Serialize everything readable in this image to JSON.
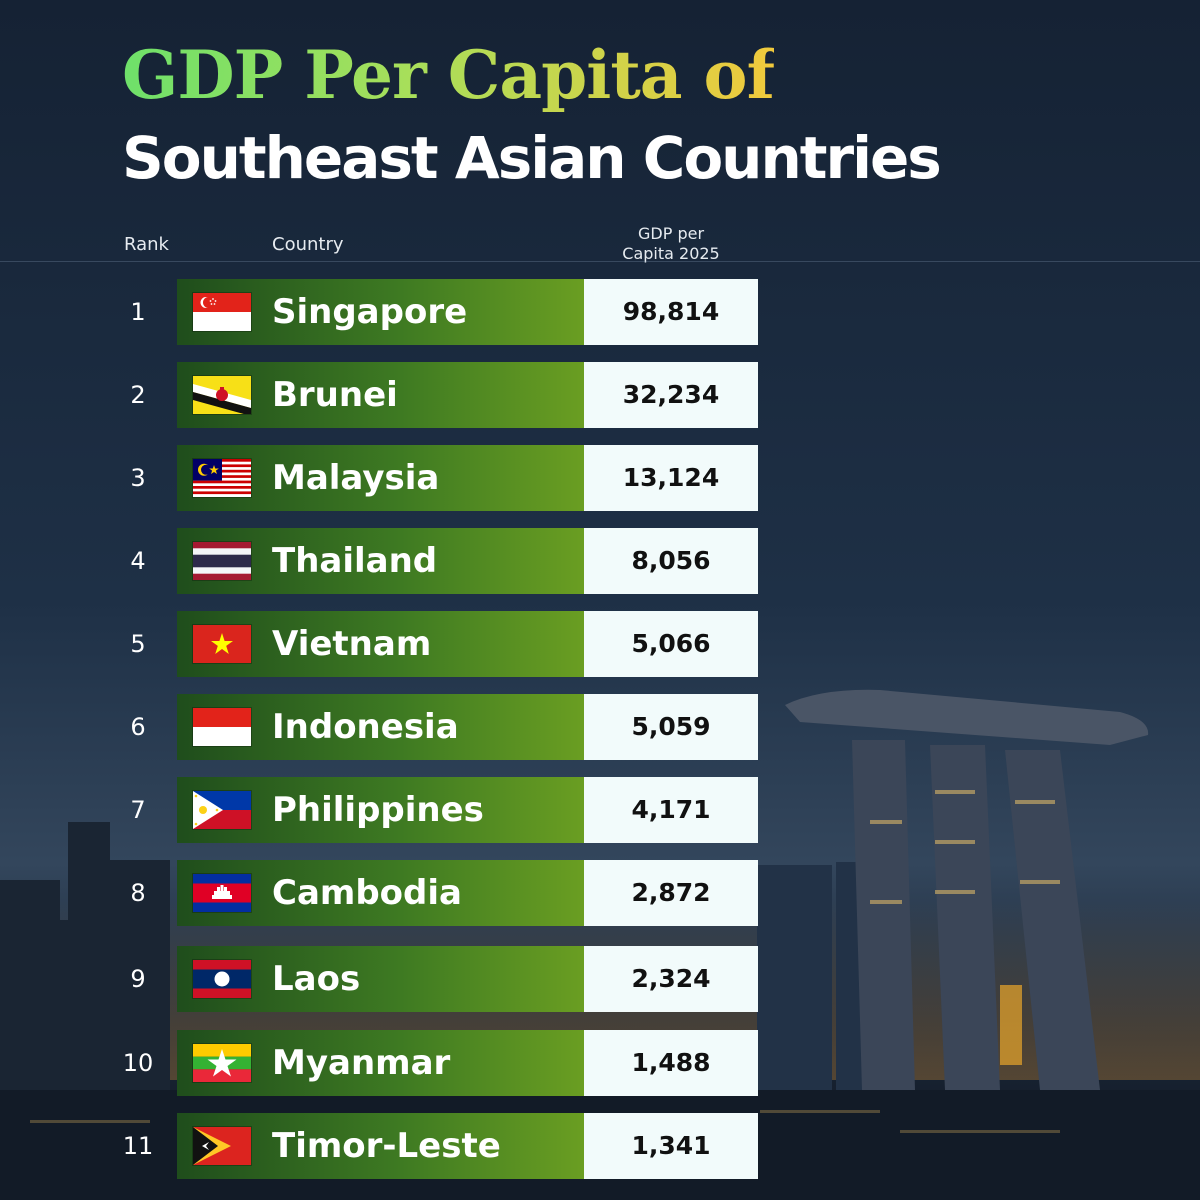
{
  "title_line1": "GDP Per Capita of",
  "title_line2": "Southeast Asian Countries",
  "headers": {
    "rank": "Rank",
    "country": "Country",
    "gdp_line1": "GDP per",
    "gdp_line2": "Capita 2025"
  },
  "colors": {
    "bar_start": "#1f4d1c",
    "bar_end": "#6a9e22",
    "value_bg": "#f2fbfb",
    "title_green": "#6ee06a",
    "title_gold": "#f0c93c"
  },
  "chart_data": {
    "type": "table",
    "title": "GDP Per Capita of Southeast Asian Countries",
    "columns": [
      "Rank",
      "Country",
      "GDP per Capita 2025"
    ],
    "rows": [
      {
        "rank": "1",
        "country": "Singapore",
        "value": "98,814",
        "flag": "singapore-flag-icon"
      },
      {
        "rank": "2",
        "country": "Brunei",
        "value": "32,234",
        "flag": "brunei-flag-icon"
      },
      {
        "rank": "3",
        "country": "Malaysia",
        "value": "13,124",
        "flag": "malaysia-flag-icon"
      },
      {
        "rank": "4",
        "country": "Thailand",
        "value": "8,056",
        "flag": "thailand-flag-icon"
      },
      {
        "rank": "5",
        "country": "Vietnam",
        "value": "5,066",
        "flag": "vietnam-flag-icon"
      },
      {
        "rank": "6",
        "country": "Indonesia",
        "value": "5,059",
        "flag": "indonesia-flag-icon"
      },
      {
        "rank": "7",
        "country": "Philippines",
        "value": "4,171",
        "flag": "philippines-flag-icon"
      },
      {
        "rank": "8",
        "country": "Cambodia",
        "value": "2,872",
        "flag": "cambodia-flag-icon"
      },
      {
        "rank": "9",
        "country": "Laos",
        "value": "2,324",
        "flag": "laos-flag-icon"
      },
      {
        "rank": "10",
        "country": "Myanmar",
        "value": "1,488",
        "flag": "myanmar-flag-icon"
      },
      {
        "rank": "11",
        "country": "Timor-Leste",
        "value": "1,341",
        "flag": "timor-leste-flag-icon"
      }
    ]
  }
}
